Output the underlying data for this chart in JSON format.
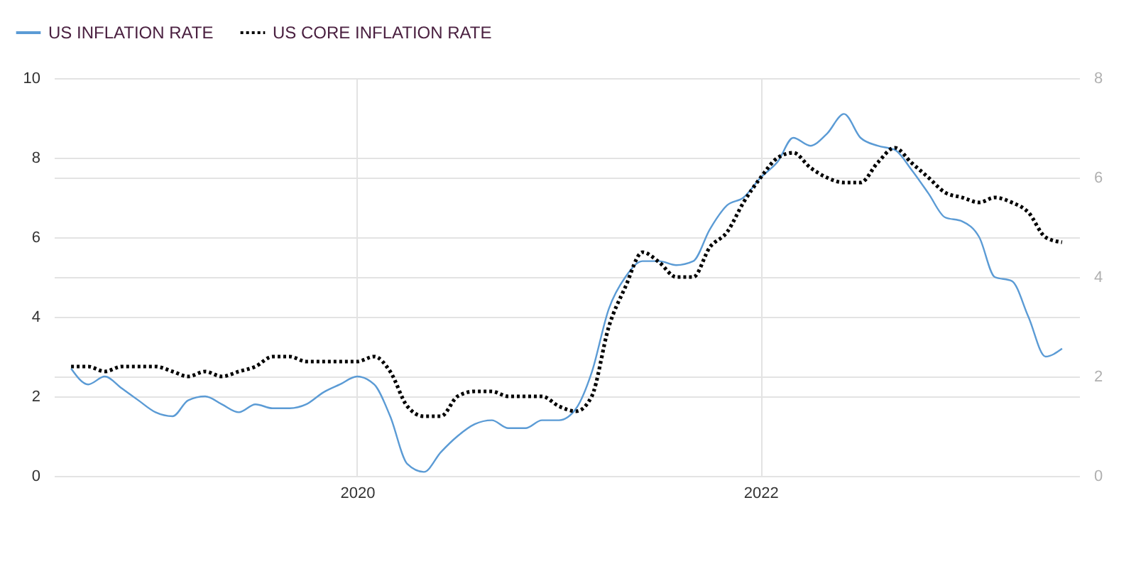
{
  "chart_data": {
    "type": "line",
    "legend": "top left",
    "grid": true,
    "x": [
      "2018-08",
      "2018-09",
      "2018-10",
      "2018-11",
      "2018-12",
      "2019-01",
      "2019-02",
      "2019-03",
      "2019-04",
      "2019-05",
      "2019-06",
      "2019-07",
      "2019-08",
      "2019-09",
      "2019-10",
      "2019-11",
      "2019-12",
      "2020-01",
      "2020-02",
      "2020-03",
      "2020-04",
      "2020-05",
      "2020-06",
      "2020-07",
      "2020-08",
      "2020-09",
      "2020-10",
      "2020-11",
      "2020-12",
      "2021-01",
      "2021-02",
      "2021-03",
      "2021-04",
      "2021-05",
      "2021-06",
      "2021-07",
      "2021-08",
      "2021-09",
      "2021-10",
      "2021-11",
      "2021-12",
      "2022-01",
      "2022-02",
      "2022-03",
      "2022-04",
      "2022-05",
      "2022-06",
      "2022-07",
      "2022-08",
      "2022-09",
      "2022-10",
      "2022-11",
      "2022-12",
      "2023-01",
      "2023-02",
      "2023-03",
      "2023-04",
      "2023-05",
      "2023-06",
      "2023-07"
    ],
    "xlim": [
      "2018-07",
      "2023-08"
    ],
    "xticks": [
      "2020",
      "2022"
    ],
    "ylim": [
      0,
      10
    ],
    "yticks": [
      0,
      2,
      4,
      6,
      8,
      10
    ],
    "y2lim": [
      0,
      8
    ],
    "y2ticks": [
      0,
      2,
      4,
      6,
      8
    ],
    "series": [
      {
        "name": "US INFLATION RATE",
        "color": "#5b9bd5",
        "line_style": "solid",
        "values": [
          2.7,
          2.3,
          2.5,
          2.2,
          1.9,
          1.6,
          1.5,
          1.9,
          2.0,
          1.8,
          1.6,
          1.8,
          1.7,
          1.7,
          1.8,
          2.1,
          2.3,
          2.5,
          2.3,
          1.5,
          0.3,
          0.1,
          0.6,
          1.0,
          1.3,
          1.4,
          1.2,
          1.2,
          1.4,
          1.4,
          1.7,
          2.6,
          4.2,
          5.0,
          5.4,
          5.4,
          5.3,
          5.4,
          6.2,
          6.8,
          7.0,
          7.5,
          7.9,
          8.5,
          8.3,
          8.6,
          9.1,
          8.5,
          8.3,
          8.2,
          7.7,
          7.1,
          6.5,
          6.4,
          6.0,
          5.0,
          4.9,
          4.0,
          3.0,
          3.2
        ]
      },
      {
        "name": "US CORE INFLATION RATE",
        "color": "#000000",
        "line_style": "dotted",
        "axis": "y2",
        "values": [
          2.2,
          2.2,
          2.1,
          2.2,
          2.2,
          2.2,
          2.1,
          2.0,
          2.1,
          2.0,
          2.1,
          2.2,
          2.4,
          2.4,
          2.3,
          2.3,
          2.3,
          2.3,
          2.4,
          2.1,
          1.4,
          1.2,
          1.2,
          1.6,
          1.7,
          1.7,
          1.6,
          1.6,
          1.6,
          1.4,
          1.3,
          1.6,
          3.0,
          3.8,
          4.5,
          4.3,
          4.0,
          4.0,
          4.6,
          4.9,
          5.5,
          6.0,
          6.4,
          6.5,
          6.2,
          6.0,
          5.9,
          5.9,
          6.3,
          6.6,
          6.3,
          6.0,
          5.7,
          5.6,
          5.5,
          5.6,
          5.5,
          5.3,
          4.8,
          4.7
        ]
      }
    ]
  }
}
